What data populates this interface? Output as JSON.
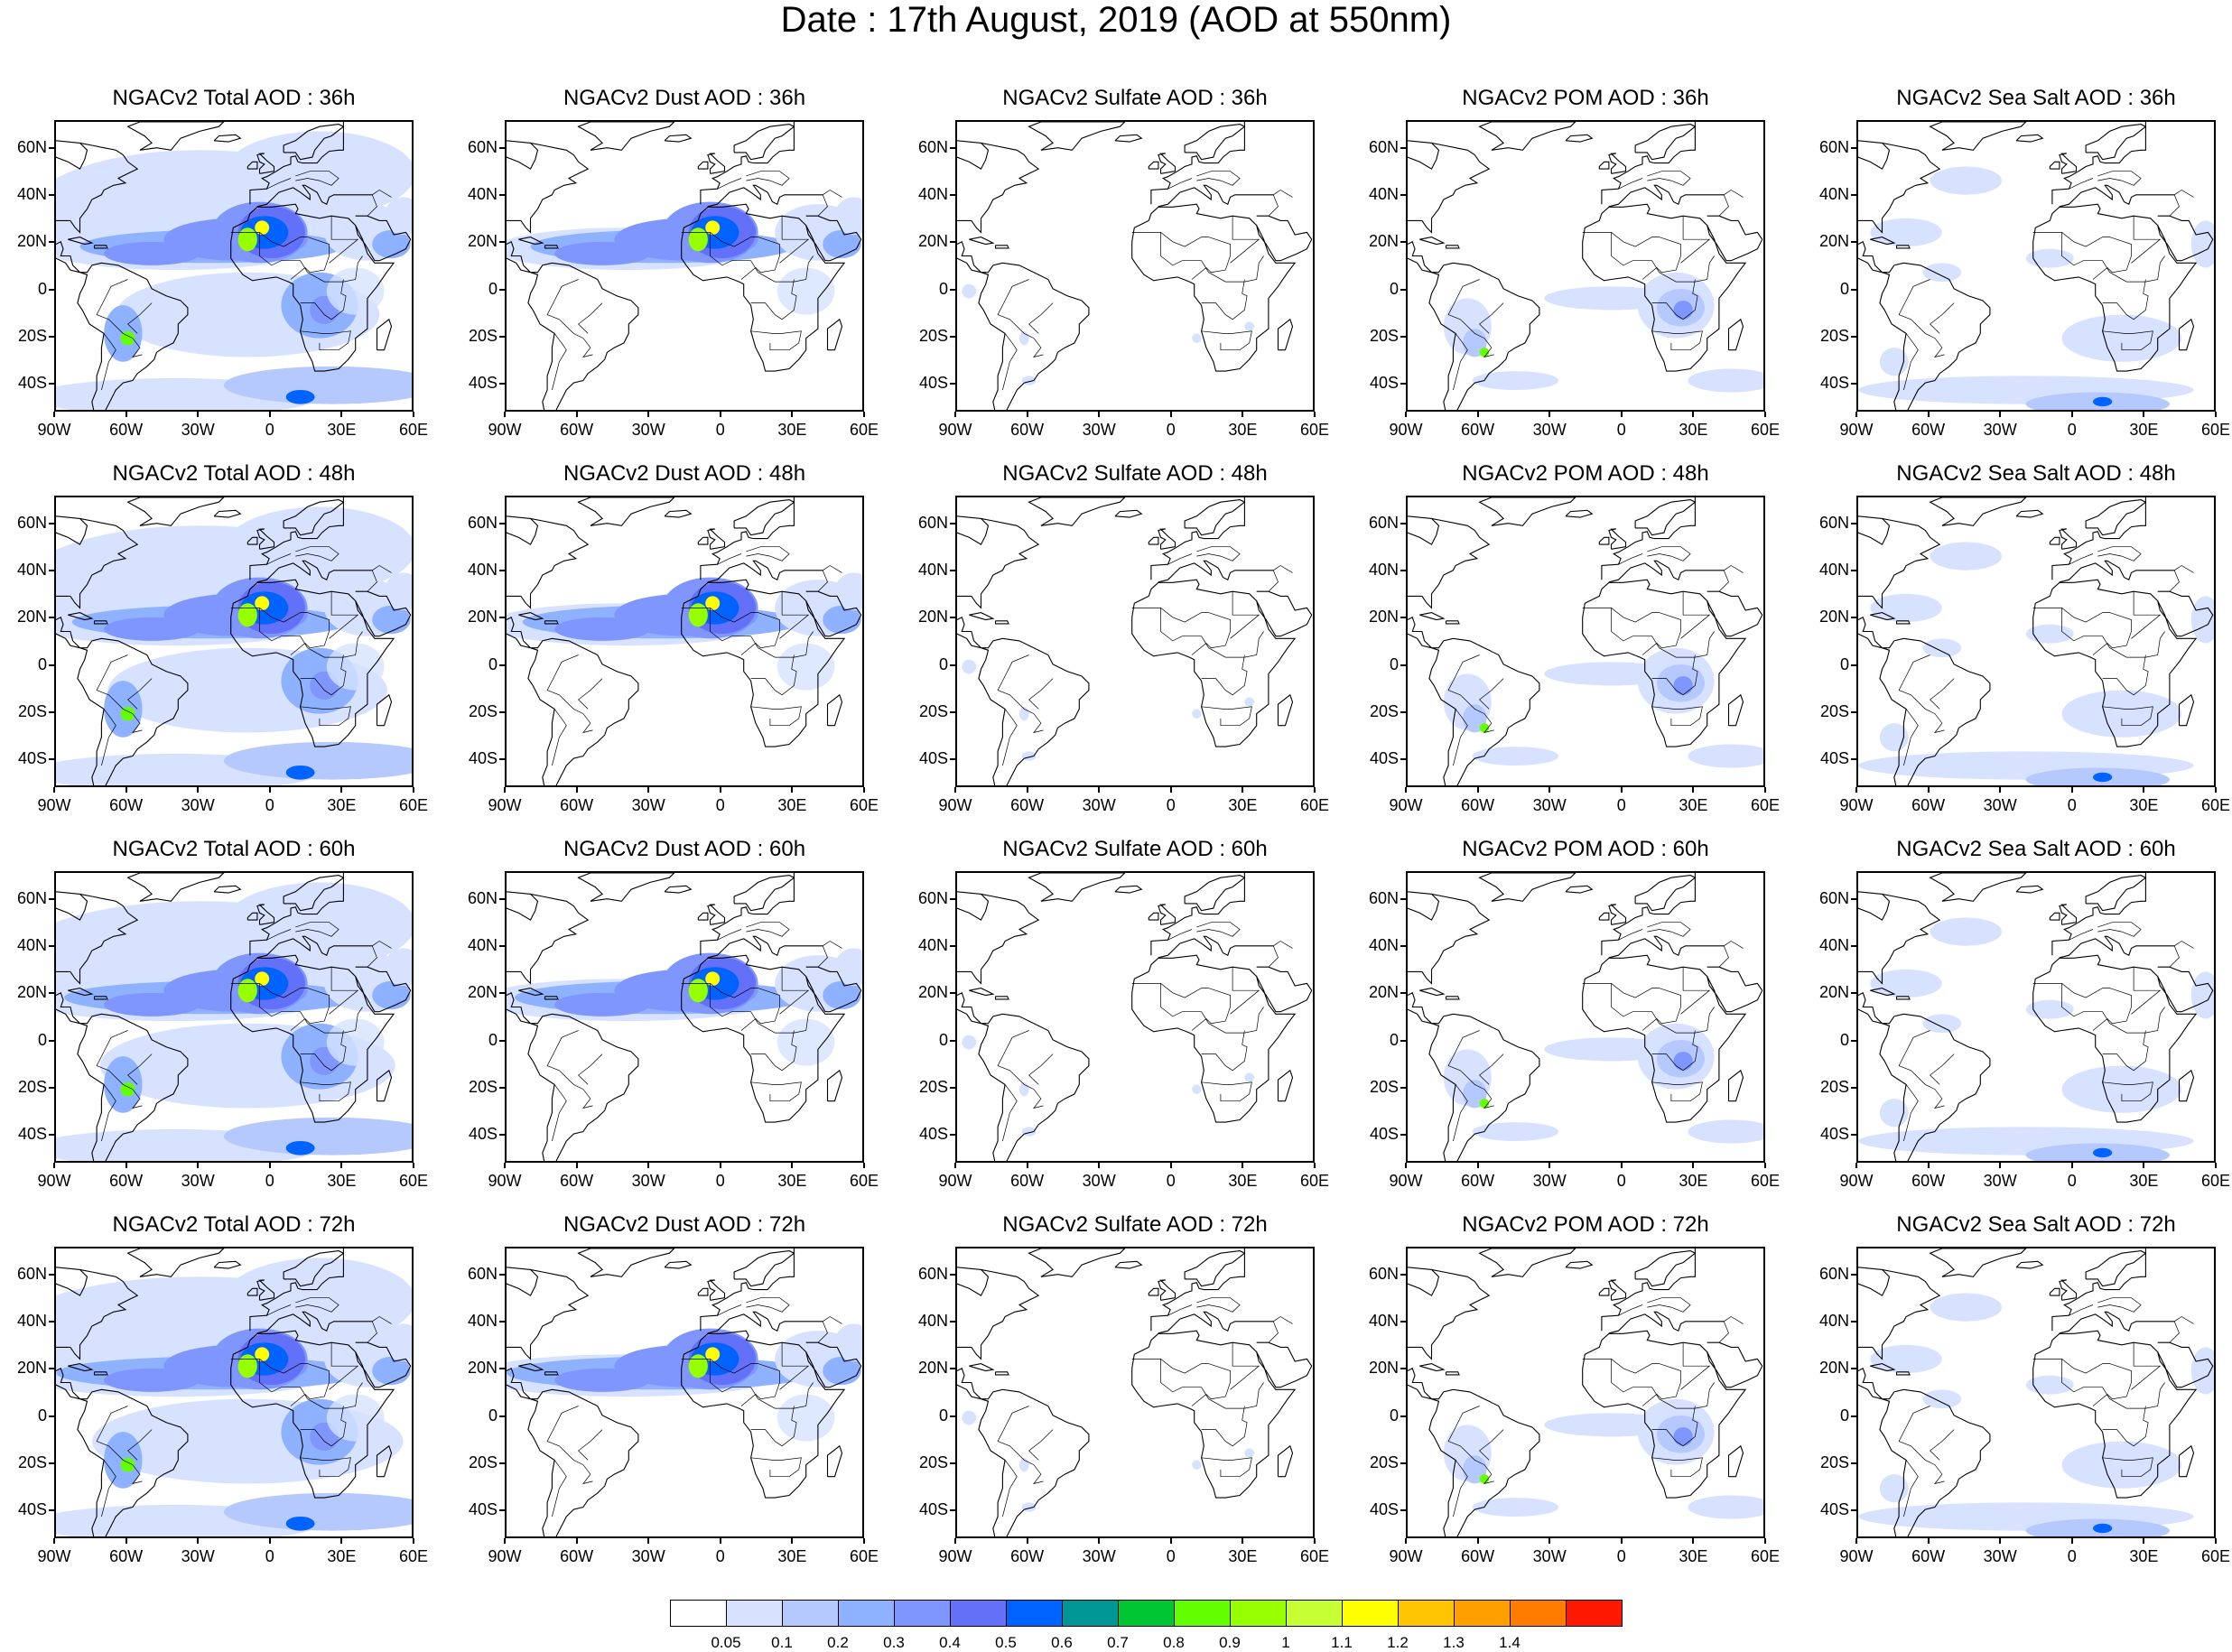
{
  "title": "Date : 17th August, 2019 (AOD at 550nm)",
  "axes": {
    "lat_labels": [
      "60N",
      "40N",
      "20N",
      "0",
      "20S",
      "40S"
    ],
    "lon_labels": [
      "90W",
      "60W",
      "30W",
      "0",
      "30E",
      "60E"
    ],
    "lat_values": [
      60,
      40,
      20,
      0,
      -20,
      -40
    ],
    "lon_values": [
      -90,
      -60,
      -30,
      0,
      30,
      60
    ],
    "lat_range": [
      -52,
      72
    ],
    "lon_range": [
      -90,
      60
    ]
  },
  "panels": [
    {
      "title": "NGACv2 Total AOD : 36h",
      "species": "total"
    },
    {
      "title": "NGACv2 Dust AOD : 36h",
      "species": "dust"
    },
    {
      "title": "NGACv2 Sulfate AOD : 36h",
      "species": "sulfate"
    },
    {
      "title": "NGACv2 POM AOD : 36h",
      "species": "pom"
    },
    {
      "title": "NGACv2 Sea Salt AOD : 36h",
      "species": "seasalt"
    },
    {
      "title": "NGACv2 Total AOD : 48h",
      "species": "total"
    },
    {
      "title": "NGACv2 Dust AOD : 48h",
      "species": "dust"
    },
    {
      "title": "NGACv2 Sulfate AOD : 48h",
      "species": "sulfate"
    },
    {
      "title": "NGACv2 POM AOD : 48h",
      "species": "pom"
    },
    {
      "title": "NGACv2 Sea Salt AOD : 48h",
      "species": "seasalt"
    },
    {
      "title": "NGACv2 Total AOD : 60h",
      "species": "total"
    },
    {
      "title": "NGACv2 Dust AOD : 60h",
      "species": "dust"
    },
    {
      "title": "NGACv2 Sulfate AOD : 60h",
      "species": "sulfate"
    },
    {
      "title": "NGACv2 POM AOD : 60h",
      "species": "pom"
    },
    {
      "title": "NGACv2 Sea Salt AOD : 60h",
      "species": "seasalt"
    },
    {
      "title": "NGACv2 Total AOD : 72h",
      "species": "total"
    },
    {
      "title": "NGACv2 Dust AOD : 72h",
      "species": "dust"
    },
    {
      "title": "NGACv2 Sulfate AOD : 72h",
      "species": "sulfate"
    },
    {
      "title": "NGACv2 POM AOD : 72h",
      "species": "pom"
    },
    {
      "title": "NGACv2 Sea Salt  AOD : 72h",
      "species": "seasalt"
    }
  ],
  "colorbar": {
    "labels": [
      "0.05",
      "0.1",
      "0.2",
      "0.3",
      "0.4",
      "0.5",
      "0.6",
      "0.7",
      "0.8",
      "0.9",
      "1",
      "1.1",
      "1.2",
      "1.3",
      "1.4"
    ],
    "colors": [
      "#ffffff",
      "#d6e2ff",
      "#b5c9ff",
      "#8eb2ff",
      "#7f96ff",
      "#6370f8",
      "#0063ff",
      "#009696",
      "#00c633",
      "#63ff00",
      "#96ff00",
      "#c6ff33",
      "#ffff00",
      "#ffc600",
      "#ffa000",
      "#ff7c00",
      "#ff1900"
    ]
  },
  "colors": {
    "coastline": "#000000",
    "frame": "#000000"
  }
}
